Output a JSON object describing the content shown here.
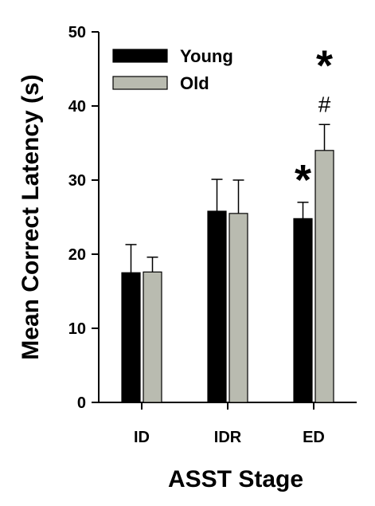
{
  "chart_data": {
    "type": "bar",
    "title": "",
    "xlabel": "ASST Stage",
    "ylabel": "Mean Correct Latency (s)",
    "ylim": [
      0,
      50
    ],
    "yticks": [
      0,
      10,
      20,
      30,
      40,
      50
    ],
    "categories": [
      "ID",
      "IDR",
      "ED"
    ],
    "series": [
      {
        "name": "Young",
        "color": "#000000",
        "values": [
          17.5,
          25.8,
          24.8
        ],
        "errors": [
          3.8,
          4.3,
          2.2
        ]
      },
      {
        "name": "Old",
        "color": "#b9bbb0",
        "values": [
          17.6,
          25.5,
          34.0
        ],
        "errors": [
          2.0,
          4.5,
          3.5
        ]
      }
    ],
    "legend_position": "top-left",
    "grid": false,
    "annotations": [
      {
        "text": "*",
        "category": "ED",
        "series": "Young",
        "note": "asterisk above Young ED bar"
      },
      {
        "text": "#",
        "category": "ED",
        "series": "Old",
        "note": "hash above Old ED bar"
      },
      {
        "text": "*",
        "category": "ED",
        "series": "Old",
        "note": "asterisk at top of Old ED column"
      }
    ]
  }
}
